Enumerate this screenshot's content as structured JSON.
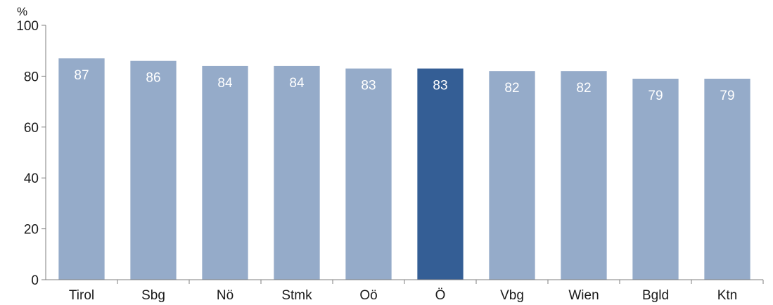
{
  "chart_data": {
    "type": "bar",
    "categories": [
      "Tirol",
      "Sbg",
      "Nö",
      "Stmk",
      "Oö",
      "Ö",
      "Vbg",
      "Wien",
      "Bgld",
      "Ktn"
    ],
    "values": [
      87,
      86,
      84,
      84,
      83,
      83,
      82,
      82,
      79,
      79
    ],
    "y_unit": "%",
    "ylim": [
      0,
      100
    ],
    "y_ticks": [
      0,
      20,
      40,
      60,
      80,
      100
    ],
    "data_labels": [
      "87",
      "86",
      "84",
      "84",
      "83",
      "83",
      "82",
      "82",
      "79",
      "79"
    ],
    "highlight_category": "Ö",
    "grid": false,
    "colors": {
      "bar": "#95abc9",
      "highlight": "#345e95",
      "axis": "#7f7f7f",
      "data_label": "#ffffff"
    }
  }
}
